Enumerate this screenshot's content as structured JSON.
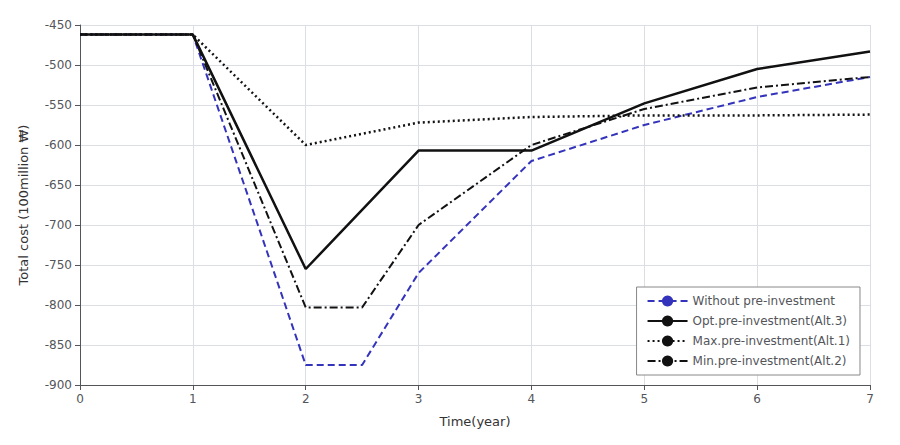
{
  "chart_data": {
    "type": "line",
    "xlabel": "Time(year)",
    "ylabel": "Total cost (100million ₩)",
    "xlim": [
      0,
      7
    ],
    "ylim": [
      -900,
      -450
    ],
    "xticks": [
      0,
      1,
      2,
      3,
      4,
      5,
      6,
      7
    ],
    "yticks": [
      -900,
      -850,
      -800,
      -750,
      -700,
      -650,
      -600,
      -550,
      -500,
      -450
    ],
    "grid": true,
    "legend": "lower right",
    "series": [
      {
        "name": "Without pre-investment",
        "color": "#3333bb",
        "line_style": "dashed",
        "x": [
          0,
          1,
          2,
          2.5,
          3,
          4,
          5,
          6,
          7
        ],
        "values": [
          -462,
          -462,
          -875,
          -875,
          -760,
          -620,
          -575,
          -540,
          -515
        ]
      },
      {
        "name": "Opt.pre-investment(Alt.3)",
        "color": "#111111",
        "line_style": "solid",
        "x": [
          0,
          1,
          2,
          3,
          4,
          5,
          6,
          7
        ],
        "values": [
          -462,
          -462,
          -755,
          -607,
          -607,
          -548,
          -505,
          -483
        ]
      },
      {
        "name": "Max.pre-investment(Alt.1)",
        "color": "#111111",
        "line_style": "dotted",
        "x": [
          0,
          1,
          2,
          3,
          4,
          5,
          6,
          7
        ],
        "values": [
          -462,
          -462,
          -600,
          -572,
          -565,
          -563,
          -563,
          -562
        ]
      },
      {
        "name": "Min.pre-investment(Alt.2)",
        "color": "#111111",
        "line_style": "dashdot",
        "x": [
          0,
          1,
          2,
          2.5,
          3,
          4,
          5,
          6,
          7
        ],
        "values": [
          -462,
          -462,
          -803,
          -803,
          -700,
          -600,
          -555,
          -528,
          -515
        ]
      }
    ]
  }
}
